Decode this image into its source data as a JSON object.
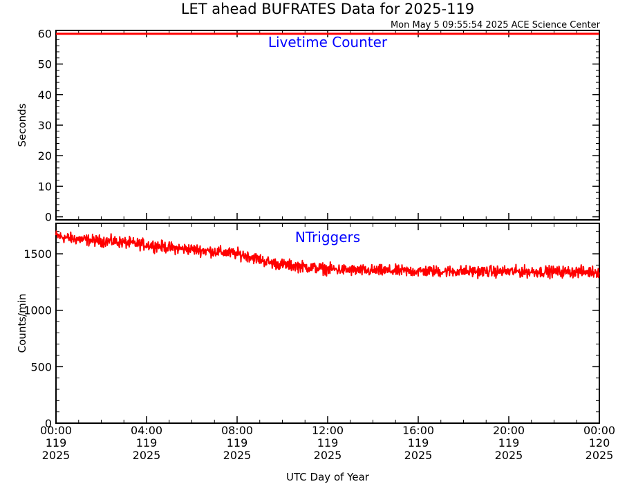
{
  "title": "LET ahead BUFRATES Data for 2025-119",
  "timestamp": "Mon May  5 09:55:54 2025 ACE Science Center",
  "xlabel": "UTC Day of Year",
  "colors": {
    "line": "#ff0000",
    "panel_label": "#0000ff",
    "axis": "#000000"
  },
  "chart_data": [
    {
      "type": "line",
      "panel_label": "Livetime Counter",
      "ylabel": "Seconds",
      "ylim": [
        -1,
        61
      ],
      "yticks": [
        0,
        10,
        20,
        30,
        40,
        50,
        60
      ],
      "xlim": [
        0,
        24
      ],
      "series": [
        {
          "x": [
            0,
            24
          ],
          "y": [
            59.9,
            59.9
          ]
        }
      ]
    },
    {
      "type": "line",
      "panel_label": "NTriggers",
      "ylabel": "Counts/min",
      "ylim": [
        0,
        1770
      ],
      "yticks": [
        0,
        500,
        1000,
        1500
      ],
      "xlim": [
        0,
        24
      ],
      "series": [
        {
          "x": [
            0,
            0.5,
            1,
            1.5,
            2,
            2.5,
            3,
            3.5,
            4,
            4.5,
            5,
            5.5,
            6,
            6.5,
            7,
            7.5,
            8,
            8.5,
            9,
            9.5,
            10,
            10.5,
            11,
            11.5,
            12,
            12.5,
            13,
            13.5,
            14,
            14.5,
            15,
            15.5,
            16,
            16.5,
            17,
            17.5,
            18,
            18.5,
            19,
            19.5,
            20,
            20.5,
            21,
            21.5,
            22,
            22.5,
            23,
            23.5,
            24
          ],
          "y": [
            1660,
            1640,
            1630,
            1620,
            1615,
            1610,
            1600,
            1590,
            1580,
            1570,
            1555,
            1545,
            1540,
            1530,
            1520,
            1510,
            1500,
            1480,
            1450,
            1420,
            1405,
            1395,
            1385,
            1375,
            1365,
            1360,
            1355,
            1352,
            1350,
            1350,
            1348,
            1347,
            1346,
            1346,
            1345,
            1345,
            1344,
            1344,
            1344,
            1343,
            1343,
            1343,
            1342,
            1342,
            1342,
            1341,
            1341,
            1340,
            1340
          ],
          "noise": 45
        }
      ]
    }
  ],
  "xticks": [
    {
      "x": 0,
      "time": "00:00",
      "doy": "119",
      "year": "2025"
    },
    {
      "x": 4,
      "time": "04:00",
      "doy": "119",
      "year": "2025"
    },
    {
      "x": 8,
      "time": "08:00",
      "doy": "119",
      "year": "2025"
    },
    {
      "x": 12,
      "time": "12:00",
      "doy": "119",
      "year": "2025"
    },
    {
      "x": 16,
      "time": "16:00",
      "doy": "119",
      "year": "2025"
    },
    {
      "x": 20,
      "time": "20:00",
      "doy": "119",
      "year": "2025"
    },
    {
      "x": 24,
      "time": "00:00",
      "doy": "120",
      "year": "2025"
    }
  ]
}
